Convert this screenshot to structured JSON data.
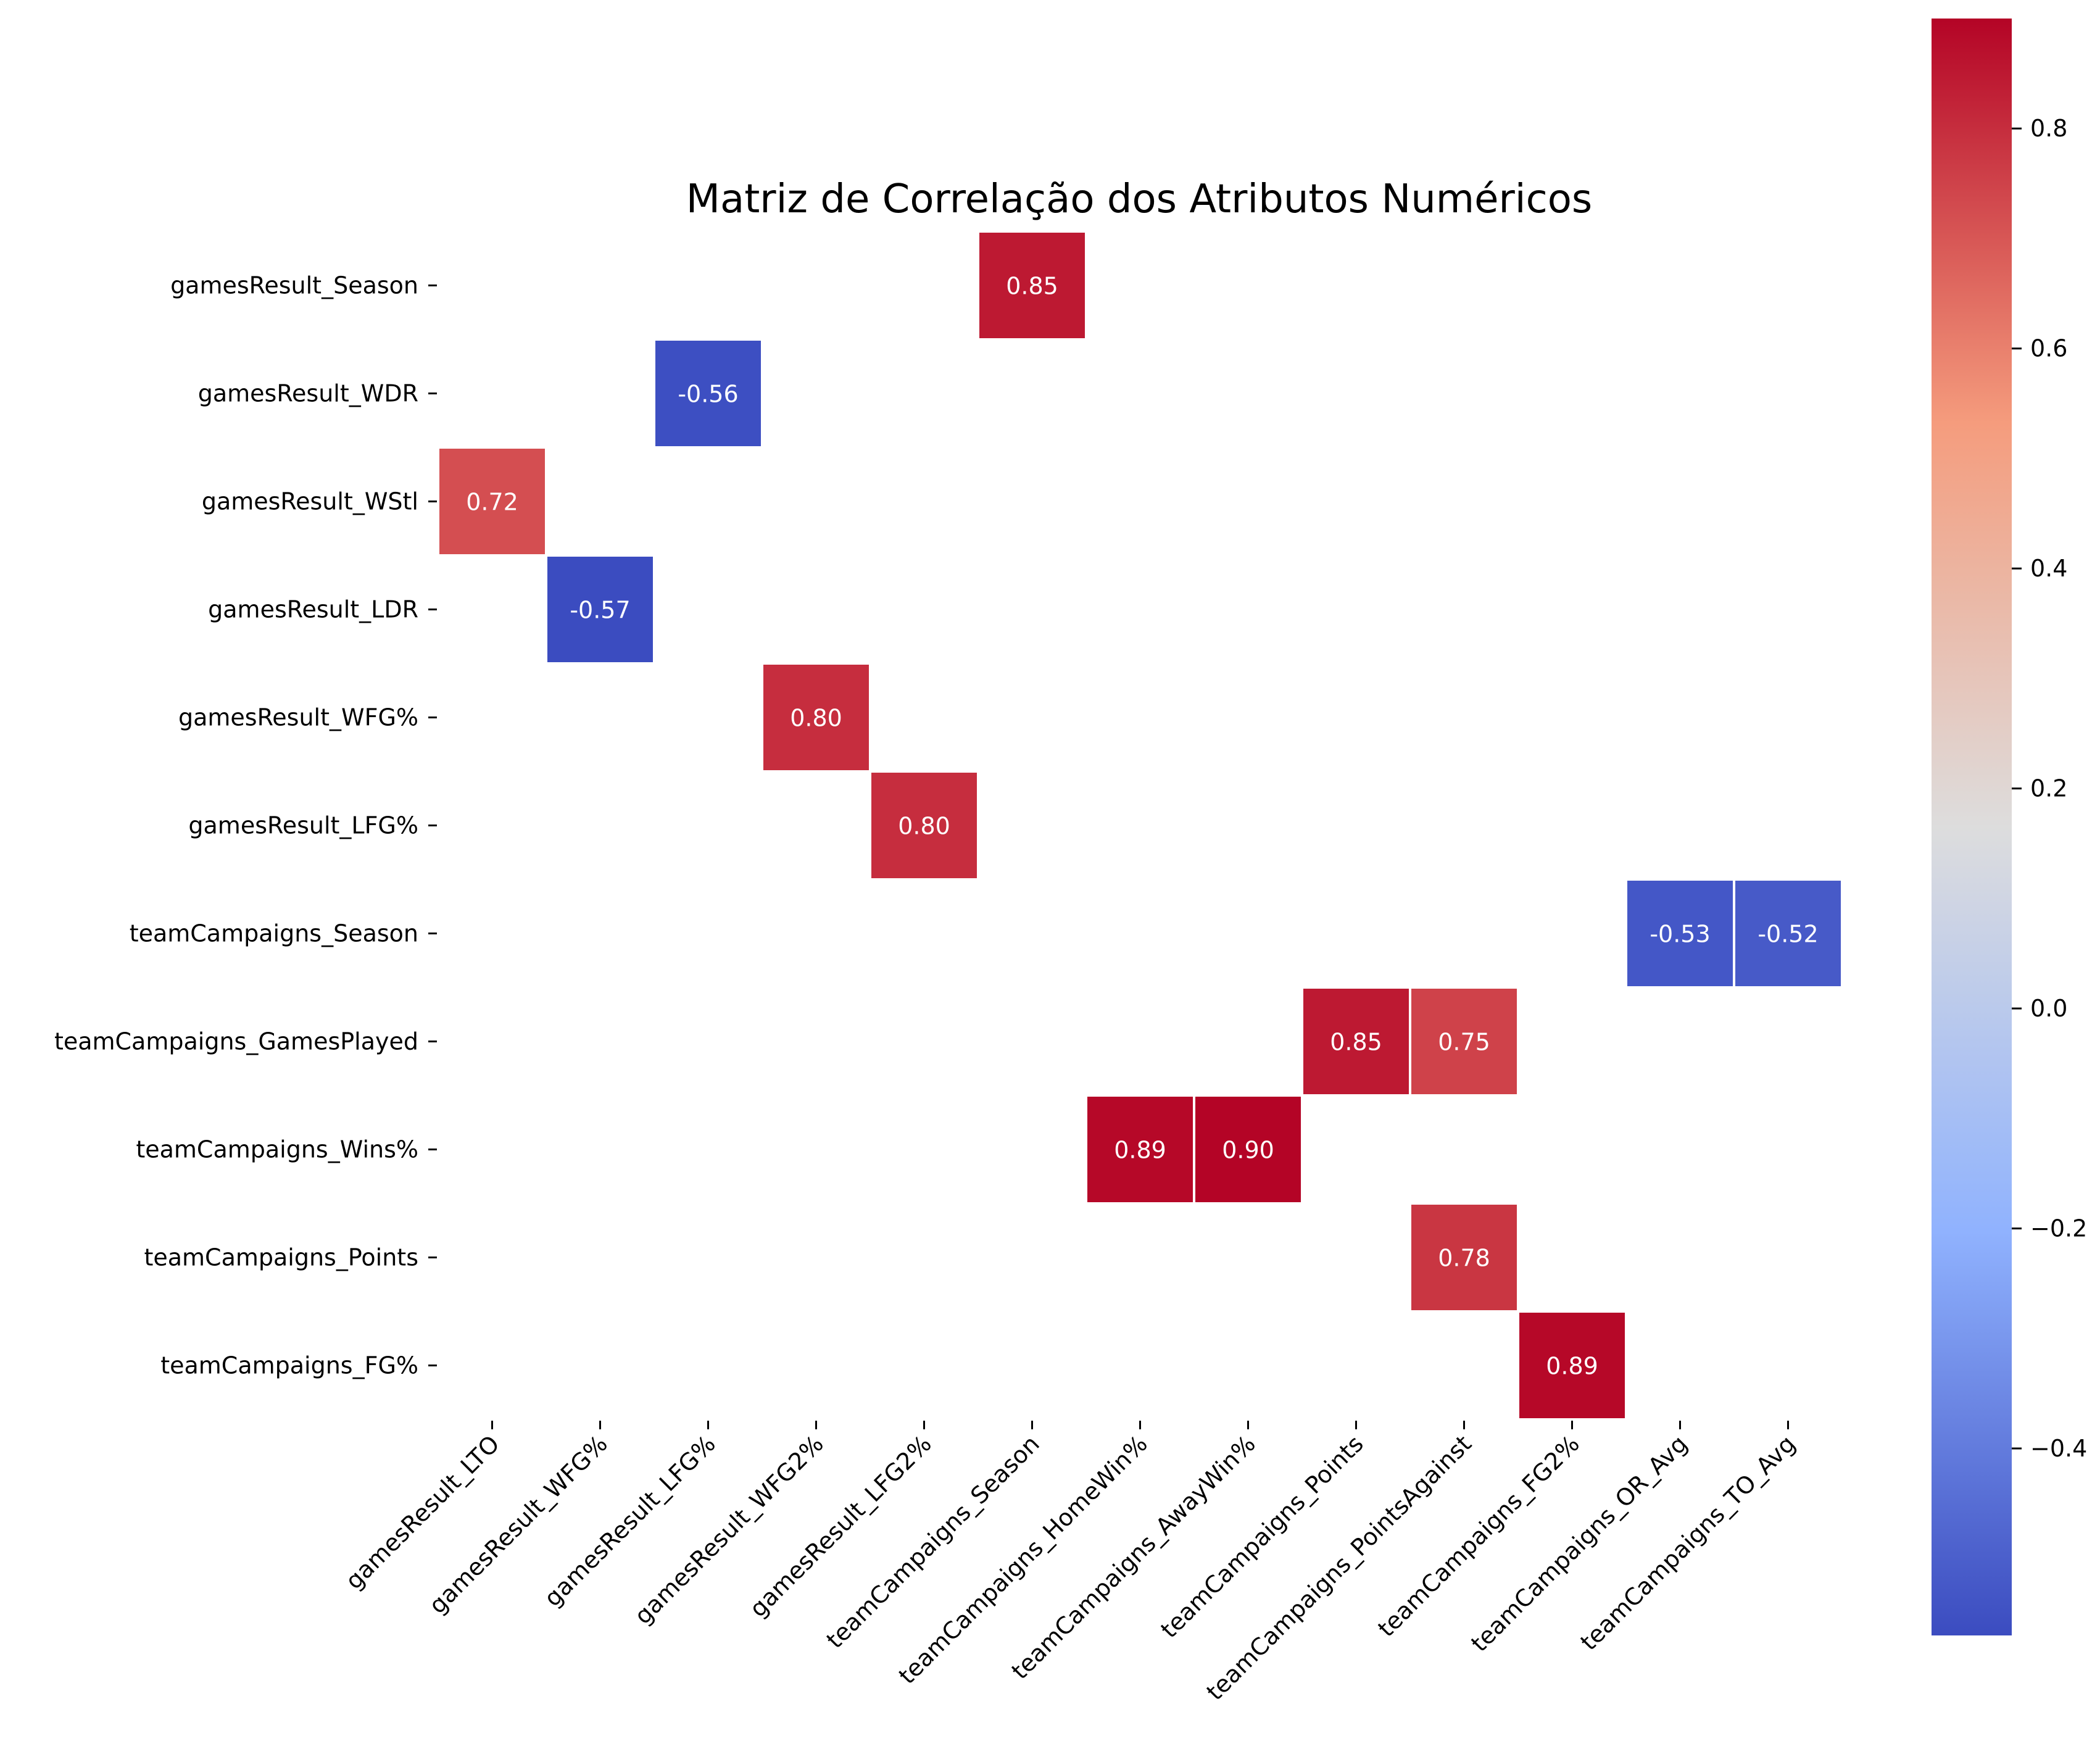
{
  "chart_data": {
    "type": "heatmap",
    "title": "Matriz de Correlação dos Atributos Numéricos",
    "rows": [
      "gamesResult_Season",
      "gamesResult_WDR",
      "gamesResult_WStl",
      "gamesResult_LDR",
      "gamesResult_WFG%",
      "gamesResult_LFG%",
      "teamCampaigns_Season",
      "teamCampaigns_GamesPlayed",
      "teamCampaigns_Wins%",
      "teamCampaigns_Points",
      "teamCampaigns_FG%"
    ],
    "columns": [
      "gamesResult_LTO",
      "gamesResult_WFG%",
      "gamesResult_LFG%",
      "gamesResult_WFG2%",
      "gamesResult_LFG2%",
      "teamCampaigns_Season",
      "teamCampaigns_HomeWin%",
      "teamCampaigns_AwayWin%",
      "teamCampaigns_Points",
      "teamCampaigns_PointsAgainst",
      "teamCampaigns_FG2%",
      "teamCampaigns_OR_Avg",
      "teamCampaigns_TO_Avg"
    ],
    "cells": [
      {
        "row": 0,
        "col": 5,
        "value": 0.85,
        "label": "0.85"
      },
      {
        "row": 1,
        "col": 2,
        "value": -0.56,
        "label": "-0.56"
      },
      {
        "row": 2,
        "col": 0,
        "value": 0.72,
        "label": "0.72"
      },
      {
        "row": 3,
        "col": 1,
        "value": -0.57,
        "label": "-0.57"
      },
      {
        "row": 4,
        "col": 3,
        "value": 0.8,
        "label": "0.80"
      },
      {
        "row": 5,
        "col": 4,
        "value": 0.8,
        "label": "0.80"
      },
      {
        "row": 6,
        "col": 11,
        "value": -0.53,
        "label": "-0.53"
      },
      {
        "row": 6,
        "col": 12,
        "value": -0.52,
        "label": "-0.52"
      },
      {
        "row": 7,
        "col": 8,
        "value": 0.85,
        "label": "0.85"
      },
      {
        "row": 7,
        "col": 9,
        "value": 0.75,
        "label": "0.75"
      },
      {
        "row": 8,
        "col": 6,
        "value": 0.89,
        "label": "0.89"
      },
      {
        "row": 8,
        "col": 7,
        "value": 0.9,
        "label": "0.90"
      },
      {
        "row": 9,
        "col": 9,
        "value": 0.78,
        "label": "0.78"
      },
      {
        "row": 10,
        "col": 10,
        "value": 0.89,
        "label": "0.89"
      }
    ],
    "colormap": "coolwarm",
    "colorbar": {
      "vmin": -0.57,
      "vmax": 0.9,
      "ticks": [
        -0.4,
        -0.2,
        0.0,
        0.2,
        0.4,
        0.6,
        0.8
      ],
      "tick_labels": [
        "−0.4",
        "−0.2",
        "0.0",
        "0.2",
        "0.4",
        "0.6",
        "0.8"
      ]
    },
    "colors": {
      "low": "#3b4cc0",
      "mid": "#dddddd",
      "high": "#b40426"
    }
  }
}
